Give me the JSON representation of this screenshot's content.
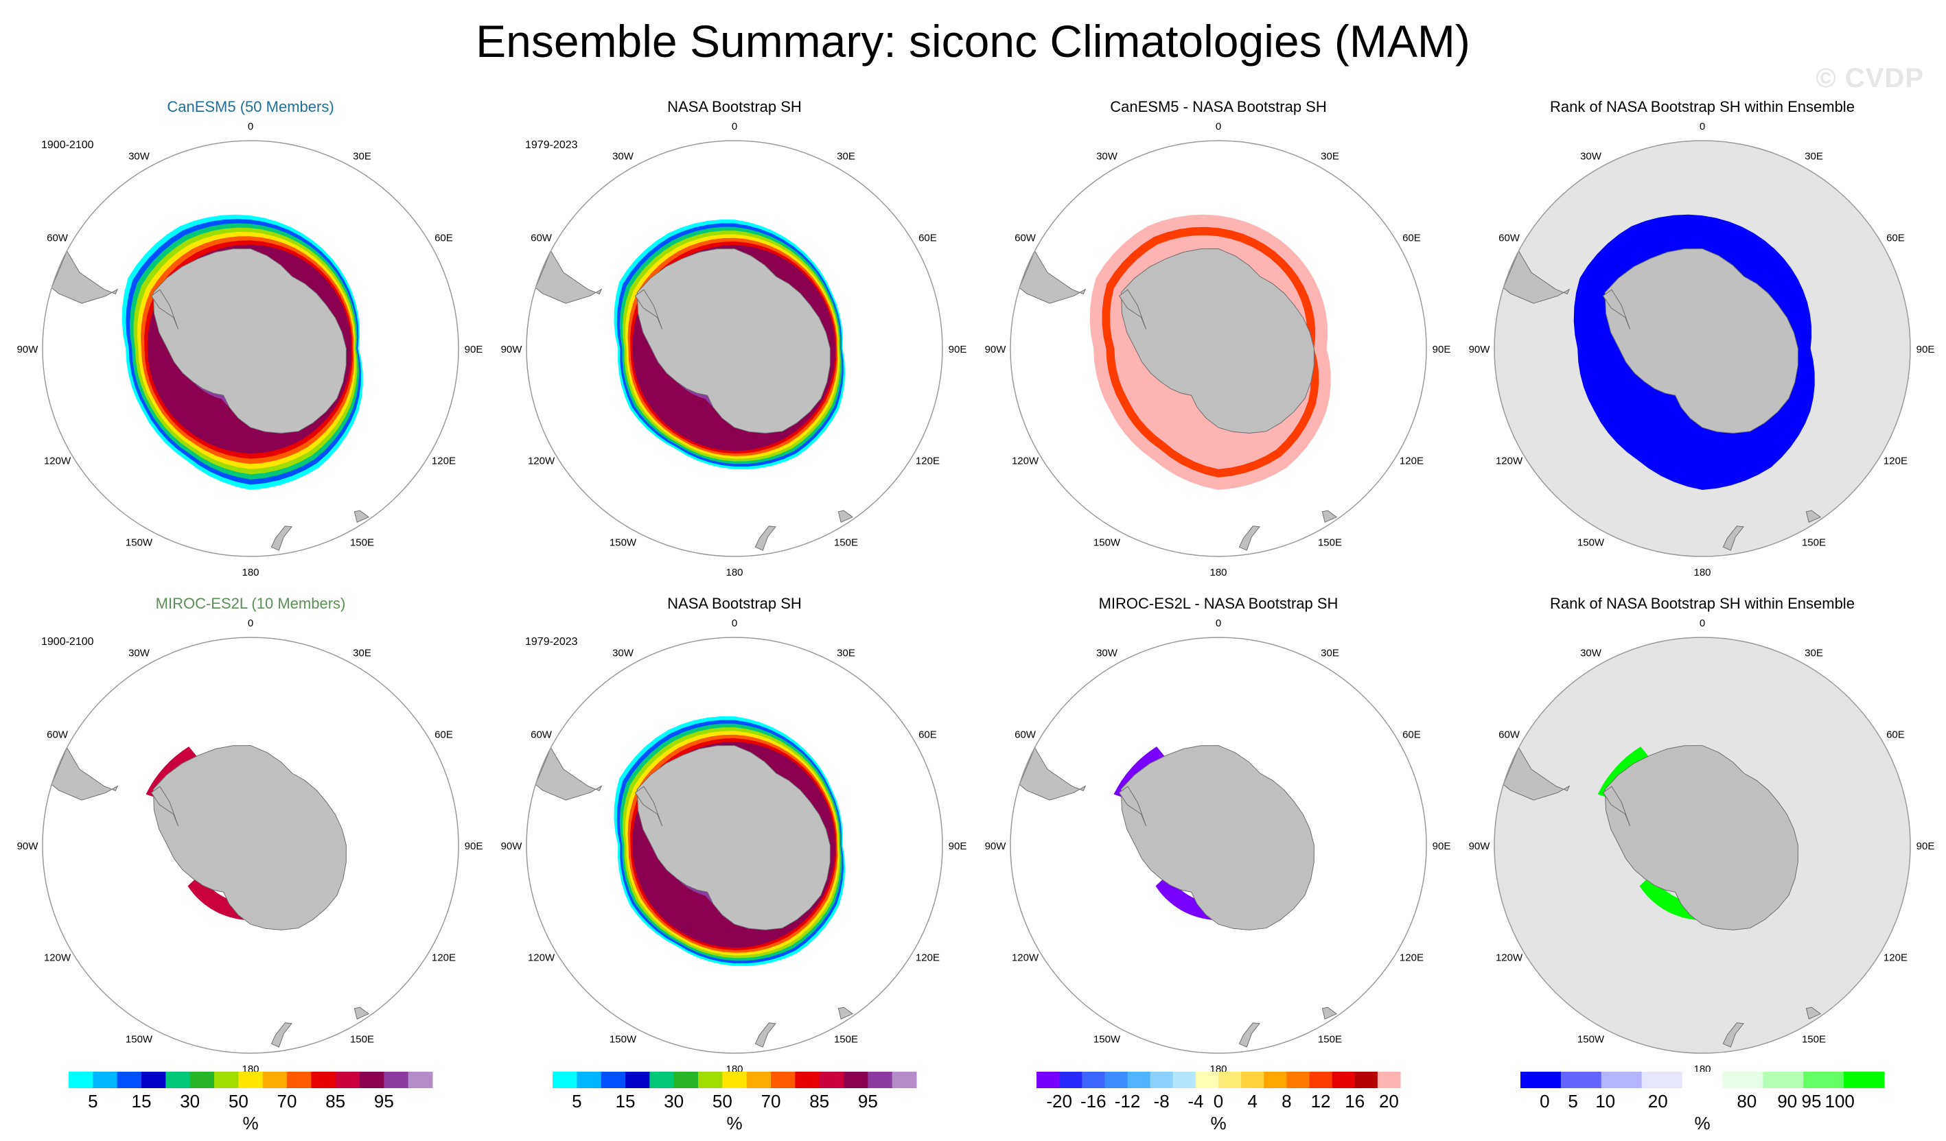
{
  "title": "Ensemble Summary: siconc Climatologies (MAM)",
  "watermark": "© CVDP",
  "colors": {
    "land": "#c0c0c0",
    "coast": "#6e6e6e",
    "circle": "#9a9a9a",
    "rank_background": "#e4e4e4",
    "row1_model_title": "#1f6f9a",
    "row2_model_title": "#5a8f56"
  },
  "lon_labels": [
    "0",
    "30E",
    "60E",
    "90E",
    "120E",
    "150E",
    "180",
    "150W",
    "120W",
    "90W",
    "60W",
    "30W"
  ],
  "chart_data": [
    {
      "type": "heatmap",
      "title": "CanESM5 (50 Members)",
      "title_style": "row1_model_title",
      "period": "1900-2100",
      "kind": "conc",
      "ice_edge_lat": [
        -58,
        -60,
        -62,
        -64,
        -60,
        -57,
        -56,
        -59,
        -60,
        -60,
        -56,
        -56
      ],
      "width_scale": 1.0,
      "hole": false
    },
    {
      "type": "heatmap",
      "title": "NASA Bootstrap SH",
      "title_style": "default",
      "period": "1979-2023",
      "kind": "conc",
      "ice_edge_lat": [
        -59,
        -61,
        -63,
        -64,
        -61,
        -60,
        -61,
        -62,
        -61,
        -62,
        -58,
        -58
      ],
      "width_scale": 0.75,
      "hole": false
    },
    {
      "type": "heatmap",
      "title": "CanESM5 - NASA Bootstrap SH",
      "title_style": "default",
      "period": "",
      "kind": "diff",
      "ice_edge_lat": [
        -58,
        -60,
        -62,
        -64,
        -60,
        -57,
        -56,
        -59,
        -60,
        -60,
        -56,
        -56
      ],
      "dominant_value": 20
    },
    {
      "type": "heatmap",
      "title": "Rank of NASA Bootstrap SH within Ensemble",
      "title_style": "default",
      "period": "",
      "kind": "rank",
      "ice_edge_lat": [
        -58,
        -60,
        -62,
        -64,
        -60,
        -57,
        -56,
        -59,
        -60,
        -60,
        -56,
        -56
      ],
      "dominant_value": 0
    },
    {
      "type": "heatmap",
      "title": "MIROC-ES2L (10 Members)",
      "title_style": "row2_model_title",
      "period": "1900-2100",
      "kind": "conc_sparse",
      "ice_regions": [
        "Weddell Sea coast",
        "Ross Sea coast"
      ],
      "max_value": 95
    },
    {
      "type": "heatmap",
      "title": "NASA Bootstrap SH",
      "title_style": "default",
      "period": "1979-2023",
      "kind": "conc",
      "ice_edge_lat": [
        -59,
        -61,
        -63,
        -64,
        -61,
        -60,
        -61,
        -62,
        -61,
        -62,
        -58,
        -58
      ],
      "width_scale": 0.75,
      "hole": false
    },
    {
      "type": "heatmap",
      "title": "MIROC-ES2L - NASA Bootstrap SH",
      "title_style": "default",
      "period": "",
      "kind": "diff_sparse",
      "ice_regions": [
        "Weddell Sea coast",
        "Ross Sea coast"
      ],
      "dominant_value": -20
    },
    {
      "type": "heatmap",
      "title": "Rank of NASA Bootstrap SH within Ensemble",
      "title_style": "default",
      "period": "",
      "kind": "rank_sparse",
      "ice_regions": [
        "Weddell Sea coast",
        "Ross Sea coast"
      ],
      "dominant_value": 100
    }
  ],
  "colorbars": [
    {
      "unit": "%",
      "colors": [
        "#00ffff",
        "#00b4ff",
        "#0050ff",
        "#0000c8",
        "#00c878",
        "#28b428",
        "#a0dc00",
        "#ffe600",
        "#ffaa00",
        "#ff5a00",
        "#e60000",
        "#c8003c",
        "#8c0050",
        "#8c3ca0",
        "#b48cc8"
      ],
      "labels": [
        "5",
        "15",
        "30",
        "50",
        "70",
        "85",
        "95"
      ],
      "label_positions": [
        1,
        3,
        5,
        7,
        9,
        11,
        13
      ]
    },
    {
      "unit": "%",
      "colors": [
        "#00ffff",
        "#00b4ff",
        "#0050ff",
        "#0000c8",
        "#00c878",
        "#28b428",
        "#a0dc00",
        "#ffe600",
        "#ffaa00",
        "#ff5a00",
        "#e60000",
        "#c8003c",
        "#8c0050",
        "#8c3ca0",
        "#b48cc8"
      ],
      "labels": [
        "5",
        "15",
        "30",
        "50",
        "70",
        "85",
        "95"
      ],
      "label_positions": [
        1,
        3,
        5,
        7,
        9,
        11,
        13
      ]
    },
    {
      "unit": "%",
      "colors": [
        "#7800ff",
        "#2828ff",
        "#3c64ff",
        "#3c8cff",
        "#50b4ff",
        "#8cd2ff",
        "#b4e6ff",
        "#ffffb4",
        "#ffeb78",
        "#ffd23c",
        "#ffa500",
        "#ff7800",
        "#ff3c00",
        "#e60000",
        "#b40000",
        "#ffb4b4"
      ],
      "labels": [
        "-20",
        "-16",
        "-12",
        "-8",
        "-4",
        "0",
        "4",
        "8",
        "12",
        "16",
        "20"
      ],
      "label_positions": [
        1,
        2.5,
        4,
        5.5,
        7,
        8,
        9.5,
        11,
        12.5,
        14,
        15.5
      ]
    },
    {
      "unit": "%",
      "colors": [
        "#0000ff",
        "#6464ff",
        "#b4b4ff",
        "#e6e6ff",
        "#ffffff",
        "#e6ffe6",
        "#b4ffb4",
        "#64ff64",
        "#00ff00"
      ],
      "labels": [
        "0",
        "5",
        "10",
        "20",
        "80",
        "90",
        "95",
        "100"
      ],
      "label_positions": [
        0.6,
        1.3,
        2.1,
        3.4,
        5.6,
        6.6,
        7.2,
        7.9
      ]
    }
  ]
}
